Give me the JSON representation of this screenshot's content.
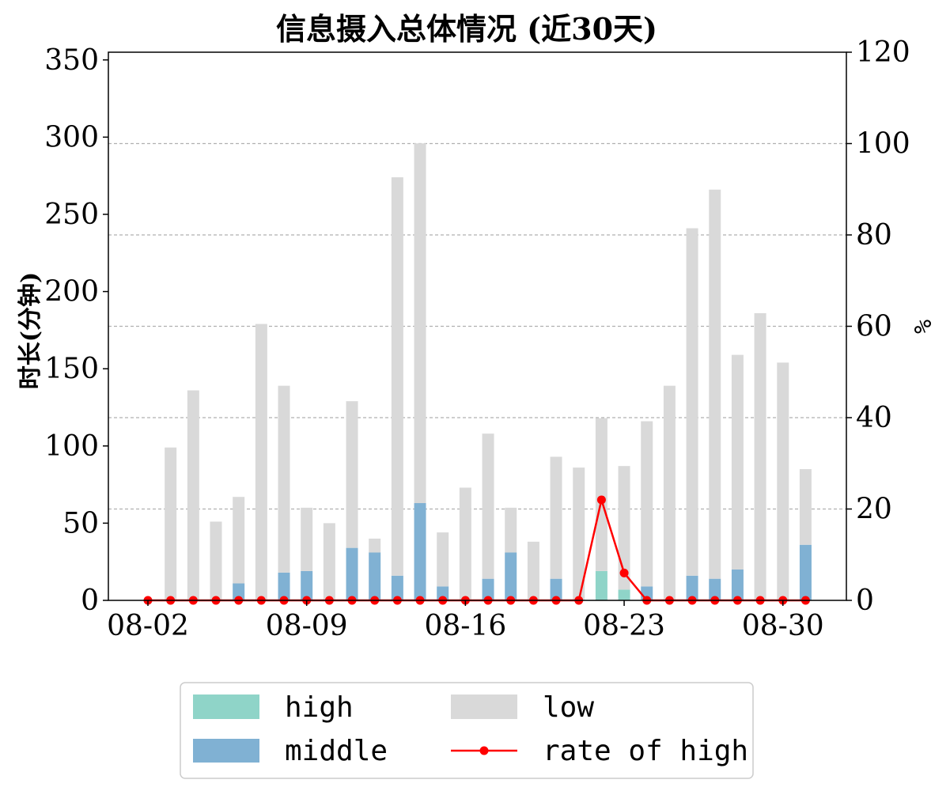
{
  "chart_data": {
    "type": "bar",
    "stacked": true,
    "title": "信息摄入总体情况 (近30天)",
    "ylabel": "时长(分钟)",
    "y2label": "%",
    "ylim": [
      0,
      355
    ],
    "y2lim": [
      0,
      120
    ],
    "yticks": [
      0,
      50,
      100,
      150,
      200,
      250,
      300,
      350
    ],
    "y2ticks": [
      0,
      20,
      40,
      60,
      80,
      100
    ],
    "xtick_labels": [
      "08-02",
      "08-09",
      "08-16",
      "08-23",
      "08-30"
    ],
    "xtick_dates": [
      "2025-08-02",
      "2025-08-09",
      "2025-08-16",
      "2025-08-23",
      "2025-08-30"
    ],
    "x": [
      "2025-08-03",
      "2025-08-04",
      "2025-08-05",
      "2025-08-06",
      "2025-08-07",
      "2025-08-08",
      "2025-08-09",
      "2025-08-10",
      "2025-08-11",
      "2025-08-12",
      "2025-08-13",
      "2025-08-14",
      "2025-08-15",
      "2025-08-16",
      "2025-08-17",
      "2025-08-18",
      "2025-08-19",
      "2025-08-20",
      "2025-08-21",
      "2025-08-22",
      "2025-08-23",
      "2025-08-24",
      "2025-08-25",
      "2025-08-26",
      "2025-08-27",
      "2025-08-28",
      "2025-08-29",
      "2025-08-30",
      "2025-08-31"
    ],
    "series": [
      {
        "name": "high",
        "color": "#8fd4c8",
        "values": [
          0,
          0,
          0,
          0,
          0,
          0,
          0,
          0,
          0,
          0,
          0,
          0,
          0,
          0,
          0,
          0,
          0,
          0,
          0,
          19,
          7,
          0,
          0,
          0,
          0,
          0,
          0,
          0,
          0
        ]
      },
      {
        "name": "middle",
        "color": "#80b1d3",
        "values": [
          0,
          0,
          0,
          11,
          0,
          18,
          19,
          0,
          34,
          31,
          16,
          63,
          9,
          0,
          14,
          31,
          0,
          14,
          0,
          0,
          0,
          9,
          0,
          16,
          14,
          20,
          0,
          0,
          36
        ]
      },
      {
        "name": "low",
        "color": "#d9d9d9",
        "values": [
          99,
          136,
          51,
          56,
          179,
          121,
          41,
          50,
          95,
          9,
          258,
          233,
          35,
          73,
          94,
          29,
          38,
          79,
          86,
          99,
          80,
          107,
          139,
          225,
          252,
          139,
          186,
          154,
          49
        ]
      }
    ],
    "line": {
      "name": "rate of high",
      "color": "#ff0000",
      "axis": "right",
      "x": [
        "2025-08-02",
        "2025-08-03",
        "2025-08-04",
        "2025-08-05",
        "2025-08-06",
        "2025-08-07",
        "2025-08-08",
        "2025-08-09",
        "2025-08-10",
        "2025-08-11",
        "2025-08-12",
        "2025-08-13",
        "2025-08-14",
        "2025-08-15",
        "2025-08-16",
        "2025-08-17",
        "2025-08-18",
        "2025-08-19",
        "2025-08-20",
        "2025-08-21",
        "2025-08-22",
        "2025-08-23",
        "2025-08-24",
        "2025-08-25",
        "2025-08-26",
        "2025-08-27",
        "2025-08-28",
        "2025-08-29",
        "2025-08-30",
        "2025-08-31"
      ],
      "values": [
        0,
        0,
        0,
        0,
        0,
        0,
        0,
        0,
        0,
        0,
        0,
        0,
        0,
        0,
        0,
        0,
        0,
        0,
        0,
        0,
        22,
        6,
        0,
        0,
        0,
        0,
        0,
        0,
        0,
        0
      ]
    },
    "grid": "horizontal-dashed",
    "legend_position": "bottom"
  }
}
